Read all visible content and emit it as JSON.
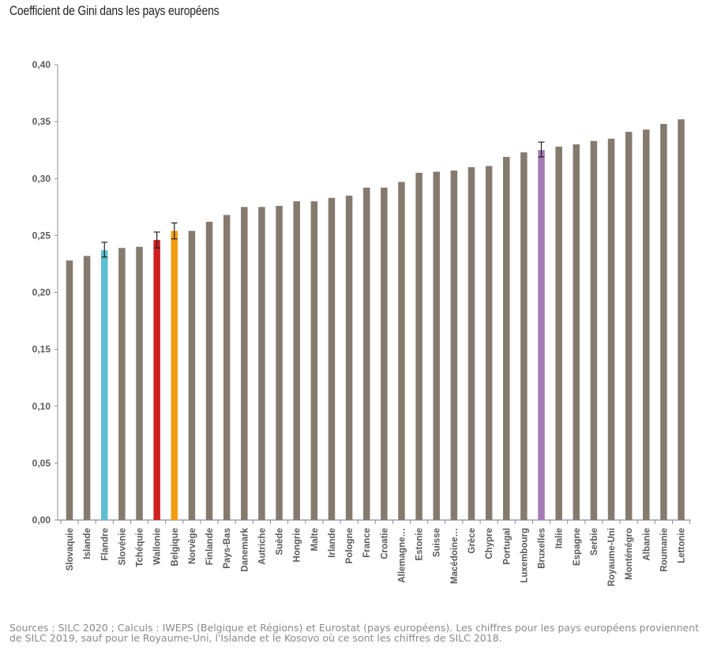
{
  "title": "Coefficient de Gini dans les pays européens",
  "source": "Sources : SILC 2020 ; Calculs : IWEPS (Belgique et Régions) et Eurostat (pays européens). Les chiffres pour les pays européens proviennent de SILC 2019, sauf pour le Royaume-Uni, l'Islande et le Kosovo où ce sont les chiffres de SILC 2018.",
  "colors": {
    "default_bar": "#857a6e",
    "Flandre": "#5bc0d2",
    "Wallonie": "#d11f1f",
    "Belgique": "#f39c12",
    "Bruxelles": "#a479b5",
    "axis": "#8c8c9c",
    "tick_text": "#5a5a5a"
  },
  "chart_data": {
    "type": "bar",
    "title": "Coefficient de Gini dans les pays européens",
    "xlabel": "",
    "ylabel": "",
    "ylim": [
      0,
      0.4
    ],
    "yticks": [
      "0,00",
      "0,05",
      "0,10",
      "0,15",
      "0,20",
      "0,25",
      "0,30",
      "0,35",
      "0,40"
    ],
    "grid": false,
    "categories": [
      "Slovaquie",
      "Islande",
      "Flandre",
      "Slovénie",
      "Tchéquie",
      "Wallonie",
      "Belgique",
      "Norvège",
      "Finlande",
      "Pays-Bas",
      "Danemark",
      "Autriche",
      "Suède",
      "Hongrie",
      "Malte",
      "Irlande",
      "Pologne",
      "France",
      "Croatie",
      "Allemagne…",
      "Estonie",
      "Suisse",
      "Macédoine…",
      "Grèce",
      "Chypre",
      "Portugal",
      "Luxembourg",
      "Bruxelles",
      "Italie",
      "Espagne",
      "Serbie",
      "Royaume-Uni",
      "Monténégro",
      "Albanie",
      "Roumanie",
      "Lettonie"
    ],
    "values": [
      0.228,
      0.232,
      0.237,
      0.239,
      0.24,
      0.246,
      0.254,
      0.254,
      0.262,
      0.268,
      0.275,
      0.275,
      0.276,
      0.28,
      0.28,
      0.283,
      0.285,
      0.292,
      0.292,
      0.297,
      0.305,
      0.306,
      0.307,
      0.31,
      0.311,
      0.319,
      0.323,
      0.325,
      0.328,
      0.33,
      0.333,
      0.335,
      0.341,
      0.343,
      0.348,
      0.352
    ],
    "error_bars": {
      "Flandre": [
        0.231,
        0.244
      ],
      "Wallonie": [
        0.239,
        0.253
      ],
      "Belgique": [
        0.247,
        0.261
      ],
      "Bruxelles": [
        0.319,
        0.332
      ]
    }
  }
}
